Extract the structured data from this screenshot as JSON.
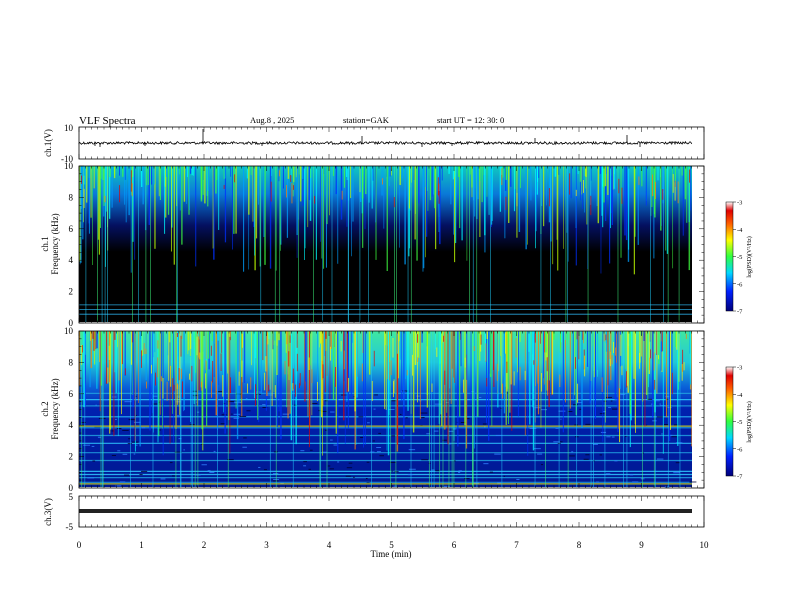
{
  "header": {
    "title": "VLF  Spectra",
    "date": "Aug.8  , 2025",
    "station": "station=GAK",
    "start_ut": "start  UT  =   12: 30: 0"
  },
  "chart_data": {
    "type": "heatmap",
    "title": "VLF  Spectra",
    "xlabel": "Time  (min)",
    "xlim": [
      0,
      10
    ],
    "x_ticks": [
      "0",
      "1",
      "2",
      "3",
      "4",
      "5",
      "6",
      "7",
      "8",
      "9",
      "10"
    ],
    "panels": [
      {
        "name": "ch1-waveform",
        "type": "line",
        "ylabel": "ch.1(V)",
        "ylim": [
          -10,
          10
        ],
        "y_ticks": [
          "10",
          "-10"
        ]
      },
      {
        "name": "ch1-spectrogram",
        "type": "heatmap",
        "ylabel_top": "ch.1",
        "ylabel": "Frequency  (kHz)",
        "ylim": [
          0,
          10
        ],
        "y_ticks": [
          "0",
          "2",
          "4",
          "6",
          "8",
          "10"
        ],
        "colorbar": {
          "label": "log(PSD)(V²/Hz)",
          "range": [
            -7,
            -3
          ],
          "ticks": [
            "-3",
            "-4",
            "-5",
            "-6",
            "-7"
          ]
        }
      },
      {
        "name": "ch2-spectrogram",
        "type": "heatmap",
        "ylabel_top": "ch.2",
        "ylabel": "Frequency  (kHz)",
        "ylim": [
          0,
          10
        ],
        "y_ticks": [
          "0",
          "2",
          "4",
          "6",
          "8",
          "10"
        ],
        "colorbar": {
          "label": "log(PSD)(V²/Hz)",
          "range": [
            -7,
            -3
          ],
          "ticks": [
            "-3",
            "-4",
            "-5",
            "-6",
            "-7"
          ]
        }
      },
      {
        "name": "ch3-waveform",
        "type": "line",
        "ylabel": "ch.3(V)",
        "ylim": [
          -5,
          5
        ],
        "y_ticks": [
          "5",
          "-5"
        ]
      }
    ],
    "colors": {
      "background": "#000000",
      "colormap": [
        "#00008f",
        "#0040ff",
        "#00ffff",
        "#40ff40",
        "#ffff00",
        "#ff8000",
        "#e00000"
      ]
    }
  }
}
